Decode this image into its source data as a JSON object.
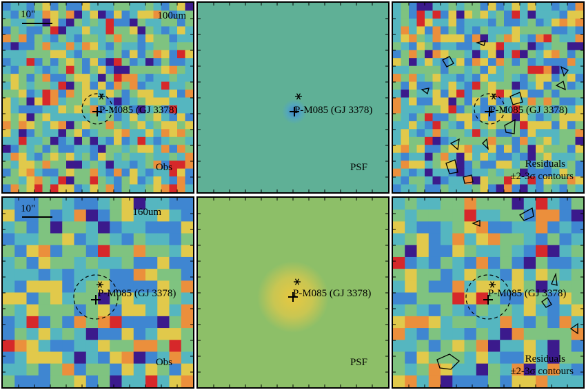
{
  "figure": {
    "source_name": "P-M085 (GJ 3378)",
    "scale_bar_label": "10\"",
    "rows": [
      {
        "band": "100um",
        "labels": {
          "obs": "Obs",
          "psf": "PSF",
          "res_line1": "Residuals",
          "res_line2": "±2-3σ contours"
        }
      },
      {
        "band": "160um",
        "labels": {
          "obs": "Obs",
          "psf": "PSF",
          "res_line1": "Residuals",
          "res_line2": "±2-3σ contours"
        }
      }
    ]
  },
  "colors": {
    "low": "#3b1a8c",
    "blue": "#3f86d1",
    "cyan": "#55b6c0",
    "green": "#7fc380",
    "yellow": "#e1c94b",
    "orange": "#eb8f3c",
    "red": "#d6282a",
    "psf_top_bg": "#5fb096",
    "psf_bottom_bg": "#8dbf68"
  }
}
